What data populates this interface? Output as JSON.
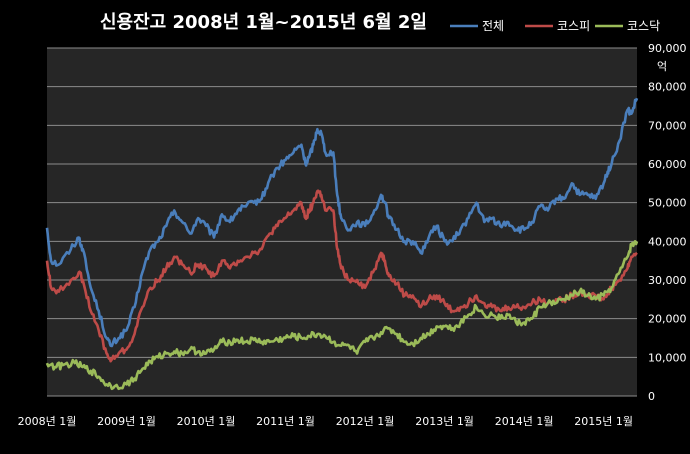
{
  "chart_data": {
    "type": "line",
    "title": "신용잔고  2008년 1월~2015년  6월 2일",
    "ylabel": "억",
    "ylim": [
      0,
      90000
    ],
    "yticks": [
      "0",
      "10,000",
      "20,000",
      "30,000",
      "40,000",
      "50,000",
      "60,000",
      "70,000",
      "80,000",
      "90,000"
    ],
    "xlim": [
      2008.0,
      2015.42
    ],
    "xticks": [
      {
        "value": 2008,
        "label": "2008년 1월"
      },
      {
        "value": 2009,
        "label": "2009년 1월"
      },
      {
        "value": 2010,
        "label": "2010년 1월"
      },
      {
        "value": 2011,
        "label": "2011년 1월"
      },
      {
        "value": 2012,
        "label": "2012년 1월"
      },
      {
        "value": 2013,
        "label": "2013년 1월"
      },
      {
        "value": 2014,
        "label": "2014년 1월"
      },
      {
        "value": 2015,
        "label": "2015년 1월"
      }
    ],
    "grid": true,
    "legend_position": "top-right",
    "background": "#262626",
    "series": [
      {
        "name": "전체",
        "color": "#4a7ebb",
        "points": [
          [
            2008.0,
            43500
          ],
          [
            2008.05,
            35000
          ],
          [
            2008.15,
            34000
          ],
          [
            2008.3,
            38000
          ],
          [
            2008.4,
            41000
          ],
          [
            2008.45,
            38000
          ],
          [
            2008.55,
            28000
          ],
          [
            2008.65,
            22000
          ],
          [
            2008.75,
            15000
          ],
          [
            2008.8,
            13000
          ],
          [
            2008.9,
            15000
          ],
          [
            2009.0,
            17000
          ],
          [
            2009.1,
            23000
          ],
          [
            2009.2,
            32000
          ],
          [
            2009.3,
            38000
          ],
          [
            2009.4,
            40000
          ],
          [
            2009.5,
            44000
          ],
          [
            2009.6,
            48000
          ],
          [
            2009.7,
            45000
          ],
          [
            2009.8,
            42000
          ],
          [
            2009.9,
            46000
          ],
          [
            2010.0,
            44000
          ],
          [
            2010.1,
            41000
          ],
          [
            2010.2,
            47000
          ],
          [
            2010.3,
            45000
          ],
          [
            2010.4,
            48000
          ],
          [
            2010.5,
            49000
          ],
          [
            2010.6,
            50000
          ],
          [
            2010.7,
            51000
          ],
          [
            2010.8,
            56000
          ],
          [
            2010.9,
            59000
          ],
          [
            2011.0,
            61000
          ],
          [
            2011.1,
            63000
          ],
          [
            2011.2,
            65000
          ],
          [
            2011.25,
            60000
          ],
          [
            2011.3,
            62000
          ],
          [
            2011.35,
            65000
          ],
          [
            2011.4,
            69000
          ],
          [
            2011.45,
            68000
          ],
          [
            2011.5,
            63000
          ],
          [
            2011.6,
            63000
          ],
          [
            2011.65,
            52000
          ],
          [
            2011.7,
            46000
          ],
          [
            2011.8,
            43000
          ],
          [
            2011.9,
            45000
          ],
          [
            2012.0,
            44000
          ],
          [
            2012.1,
            47000
          ],
          [
            2012.2,
            52000
          ],
          [
            2012.25,
            50000
          ],
          [
            2012.3,
            46000
          ],
          [
            2012.4,
            43000
          ],
          [
            2012.5,
            40000
          ],
          [
            2012.6,
            40000
          ],
          [
            2012.7,
            37000
          ],
          [
            2012.8,
            41000
          ],
          [
            2012.9,
            44000
          ],
          [
            2013.0,
            40000
          ],
          [
            2013.1,
            40000
          ],
          [
            2013.2,
            43000
          ],
          [
            2013.3,
            46000
          ],
          [
            2013.4,
            50000
          ],
          [
            2013.5,
            45000
          ],
          [
            2013.6,
            46000
          ],
          [
            2013.7,
            44000
          ],
          [
            2013.8,
            45000
          ],
          [
            2013.9,
            43000
          ],
          [
            2014.0,
            43000
          ],
          [
            2014.1,
            45000
          ],
          [
            2014.2,
            49000
          ],
          [
            2014.3,
            48000
          ],
          [
            2014.4,
            51000
          ],
          [
            2014.5,
            51000
          ],
          [
            2014.6,
            55000
          ],
          [
            2014.7,
            52000
          ],
          [
            2014.8,
            52000
          ],
          [
            2014.9,
            51000
          ],
          [
            2015.0,
            55000
          ],
          [
            2015.05,
            58000
          ],
          [
            2015.1,
            60000
          ],
          [
            2015.2,
            66000
          ],
          [
            2015.3,
            74000
          ],
          [
            2015.35,
            73000
          ],
          [
            2015.42,
            77000
          ]
        ]
      },
      {
        "name": "코스피",
        "color": "#be4b48",
        "points": [
          [
            2008.0,
            35000
          ],
          [
            2008.05,
            28000
          ],
          [
            2008.15,
            27000
          ],
          [
            2008.3,
            30000
          ],
          [
            2008.4,
            32000
          ],
          [
            2008.45,
            30000
          ],
          [
            2008.55,
            22000
          ],
          [
            2008.65,
            17000
          ],
          [
            2008.75,
            11000
          ],
          [
            2008.8,
            9000
          ],
          [
            2008.9,
            11000
          ],
          [
            2009.0,
            12000
          ],
          [
            2009.1,
            16000
          ],
          [
            2009.2,
            23000
          ],
          [
            2009.3,
            28000
          ],
          [
            2009.4,
            30000
          ],
          [
            2009.5,
            33000
          ],
          [
            2009.6,
            36000
          ],
          [
            2009.7,
            34000
          ],
          [
            2009.8,
            32000
          ],
          [
            2009.9,
            34000
          ],
          [
            2010.0,
            33000
          ],
          [
            2010.1,
            31000
          ],
          [
            2010.2,
            35000
          ],
          [
            2010.3,
            33000
          ],
          [
            2010.4,
            35000
          ],
          [
            2010.5,
            36000
          ],
          [
            2010.6,
            37000
          ],
          [
            2010.7,
            38000
          ],
          [
            2010.8,
            42000
          ],
          [
            2010.9,
            44000
          ],
          [
            2011.0,
            46000
          ],
          [
            2011.1,
            48000
          ],
          [
            2011.2,
            50000
          ],
          [
            2011.25,
            46000
          ],
          [
            2011.3,
            48000
          ],
          [
            2011.35,
            50000
          ],
          [
            2011.4,
            53000
          ],
          [
            2011.45,
            52000
          ],
          [
            2011.5,
            48000
          ],
          [
            2011.6,
            48000
          ],
          [
            2011.65,
            38000
          ],
          [
            2011.7,
            33000
          ],
          [
            2011.8,
            30000
          ],
          [
            2011.9,
            30000
          ],
          [
            2012.0,
            28000
          ],
          [
            2012.1,
            32000
          ],
          [
            2012.2,
            37000
          ],
          [
            2012.25,
            35000
          ],
          [
            2012.3,
            31000
          ],
          [
            2012.4,
            29000
          ],
          [
            2012.5,
            26000
          ],
          [
            2012.6,
            26000
          ],
          [
            2012.7,
            23000
          ],
          [
            2012.8,
            25000
          ],
          [
            2012.9,
            26000
          ],
          [
            2013.0,
            24000
          ],
          [
            2013.1,
            22000
          ],
          [
            2013.2,
            23000
          ],
          [
            2013.3,
            24000
          ],
          [
            2013.4,
            26000
          ],
          [
            2013.5,
            24000
          ],
          [
            2013.6,
            23000
          ],
          [
            2013.7,
            22000
          ],
          [
            2013.8,
            23000
          ],
          [
            2013.9,
            23000
          ],
          [
            2014.0,
            23000
          ],
          [
            2014.1,
            24000
          ],
          [
            2014.2,
            25000
          ],
          [
            2014.3,
            24000
          ],
          [
            2014.4,
            25000
          ],
          [
            2014.5,
            25000
          ],
          [
            2014.6,
            26000
          ],
          [
            2014.7,
            27000
          ],
          [
            2014.8,
            26000
          ],
          [
            2014.9,
            26000
          ],
          [
            2015.0,
            25000
          ],
          [
            2015.1,
            28000
          ],
          [
            2015.2,
            30000
          ],
          [
            2015.3,
            33000
          ],
          [
            2015.35,
            36000
          ],
          [
            2015.42,
            37000
          ]
        ]
      },
      {
        "name": "코스닥",
        "color": "#9bbb59",
        "points": [
          [
            2008.0,
            8500
          ],
          [
            2008.1,
            7500
          ],
          [
            2008.2,
            8000
          ],
          [
            2008.35,
            8500
          ],
          [
            2008.45,
            7500
          ],
          [
            2008.55,
            6500
          ],
          [
            2008.65,
            5000
          ],
          [
            2008.75,
            3000
          ],
          [
            2008.85,
            2500
          ],
          [
            2009.0,
            3000
          ],
          [
            2009.1,
            4500
          ],
          [
            2009.2,
            7000
          ],
          [
            2009.3,
            9000
          ],
          [
            2009.4,
            10000
          ],
          [
            2009.5,
            11000
          ],
          [
            2009.6,
            11500
          ],
          [
            2009.7,
            11000
          ],
          [
            2009.8,
            12000
          ],
          [
            2009.9,
            11500
          ],
          [
            2010.0,
            11000
          ],
          [
            2010.1,
            12000
          ],
          [
            2010.2,
            14000
          ],
          [
            2010.3,
            14000
          ],
          [
            2010.4,
            14500
          ],
          [
            2010.5,
            14000
          ],
          [
            2010.6,
            14500
          ],
          [
            2010.7,
            14000
          ],
          [
            2010.8,
            14000
          ],
          [
            2010.9,
            14500
          ],
          [
            2011.0,
            15000
          ],
          [
            2011.1,
            15500
          ],
          [
            2011.2,
            15000
          ],
          [
            2011.3,
            15500
          ],
          [
            2011.4,
            16000
          ],
          [
            2011.5,
            15500
          ],
          [
            2011.6,
            14000
          ],
          [
            2011.7,
            13000
          ],
          [
            2011.8,
            13000
          ],
          [
            2011.9,
            11000
          ],
          [
            2012.0,
            14000
          ],
          [
            2012.1,
            15000
          ],
          [
            2012.2,
            16500
          ],
          [
            2012.3,
            17500
          ],
          [
            2012.4,
            16000
          ],
          [
            2012.5,
            14000
          ],
          [
            2012.6,
            13500
          ],
          [
            2012.7,
            15000
          ],
          [
            2012.8,
            16000
          ],
          [
            2012.9,
            18000
          ],
          [
            2013.0,
            18000
          ],
          [
            2013.1,
            17500
          ],
          [
            2013.2,
            19000
          ],
          [
            2013.3,
            21000
          ],
          [
            2013.4,
            23000
          ],
          [
            2013.5,
            21000
          ],
          [
            2013.6,
            21000
          ],
          [
            2013.7,
            20000
          ],
          [
            2013.8,
            21000
          ],
          [
            2013.9,
            19000
          ],
          [
            2014.0,
            19000
          ],
          [
            2014.1,
            20000
          ],
          [
            2014.2,
            23000
          ],
          [
            2014.3,
            24000
          ],
          [
            2014.4,
            24000
          ],
          [
            2014.5,
            25000
          ],
          [
            2014.6,
            26000
          ],
          [
            2014.7,
            27000
          ],
          [
            2014.8,
            26000
          ],
          [
            2014.9,
            25000
          ],
          [
            2015.0,
            26000
          ],
          [
            2015.1,
            28000
          ],
          [
            2015.2,
            32000
          ],
          [
            2015.3,
            36000
          ],
          [
            2015.35,
            39000
          ],
          [
            2015.42,
            40000
          ]
        ]
      }
    ]
  }
}
